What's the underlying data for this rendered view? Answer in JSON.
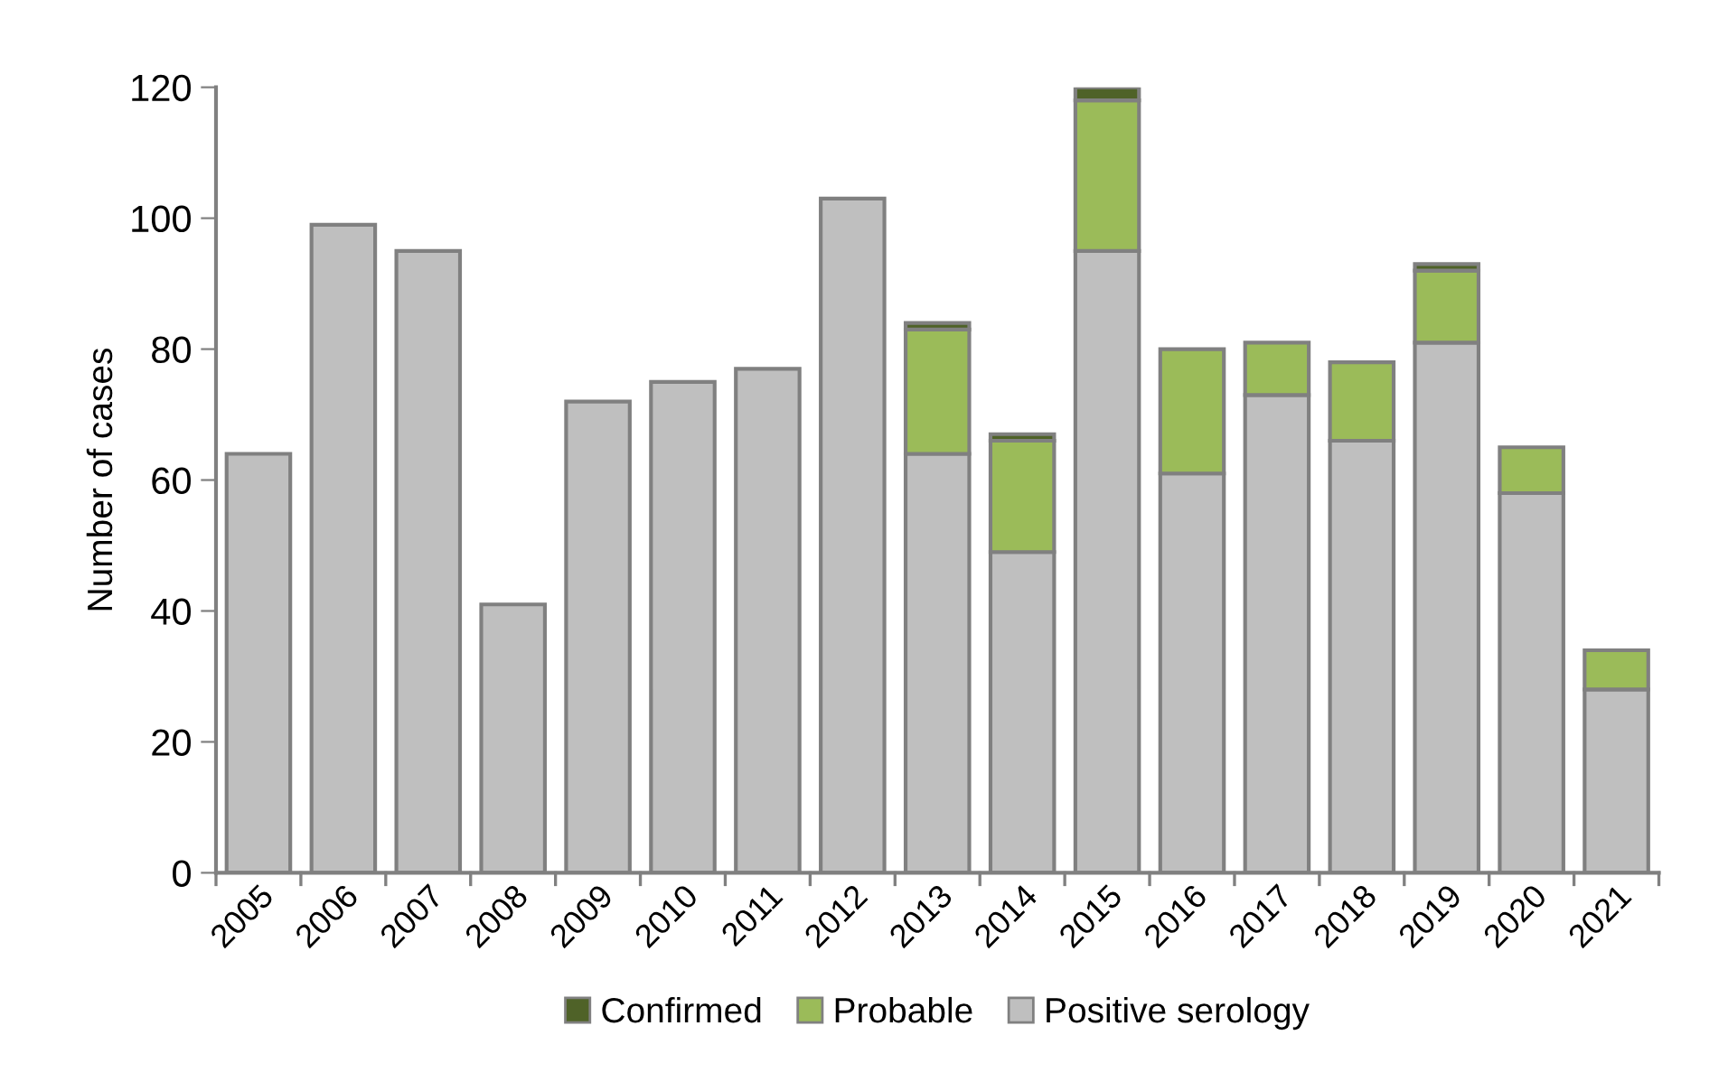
{
  "chart_data": {
    "type": "bar",
    "stacked": true,
    "ylabel": "Number of cases",
    "categories": [
      "2005",
      "2006",
      "2007",
      "2008",
      "2009",
      "2010",
      "2011",
      "2012",
      "2013",
      "2014",
      "2015",
      "2016",
      "2017",
      "2018",
      "2019",
      "2020",
      "2021"
    ],
    "series": [
      {
        "name": "Positive serology",
        "color": "#bfbfbf",
        "values": [
          64,
          99,
          95,
          41,
          72,
          75,
          77,
          103,
          64,
          49,
          95,
          61,
          73,
          66,
          81,
          58,
          28
        ]
      },
      {
        "name": "Probable",
        "color": "#9bbb59",
        "values": [
          null,
          null,
          null,
          null,
          null,
          null,
          null,
          null,
          19,
          17,
          23,
          19,
          8,
          12,
          11,
          7,
          6
        ]
      },
      {
        "name": "Confirmed",
        "color": "#4f6228",
        "values": [
          null,
          null,
          null,
          null,
          null,
          null,
          null,
          null,
          1,
          1,
          2,
          null,
          null,
          null,
          1,
          null,
          null
        ]
      }
    ],
    "ylim": [
      0,
      120
    ],
    "yticks": [
      0,
      20,
      40,
      60,
      80,
      100,
      120
    ],
    "grid": false,
    "legend": "bottom"
  }
}
